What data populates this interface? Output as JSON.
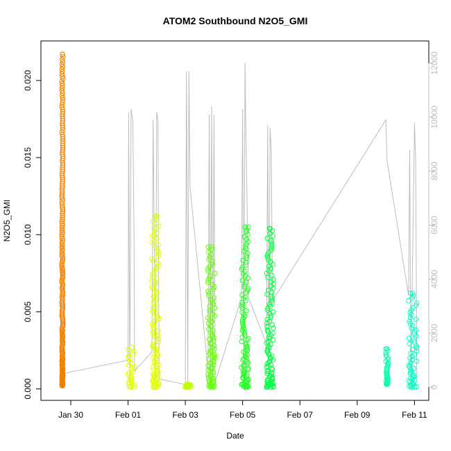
{
  "chart_data": {
    "type": "scatter",
    "title": "ATOM2 Southbound N2O5_GMI",
    "xlabel": "Date",
    "ylabel": "N2O5_GMI",
    "x_ticks": [
      "Jan 30",
      "Feb 01",
      "Feb 03",
      "Feb 05",
      "Feb 07",
      "Feb 09",
      "Feb 11"
    ],
    "xlim": [
      "2017-01-28T23:00",
      "2017-02-11T12:00"
    ],
    "ylim": [
      0,
      0.0217
    ],
    "y_ticks": [
      0.0,
      0.005,
      0.01,
      0.015,
      0.02
    ],
    "y_tick_labels": [
      "0.000",
      "0.005",
      "0.010",
      "0.015",
      "0.020"
    ],
    "y2_ticks": [
      0,
      2000,
      4000,
      6000,
      8000,
      10000,
      12000
    ],
    "y2lim": [
      0,
      12000
    ],
    "grid": false,
    "colors": {
      "day_jan29": "#f08000",
      "day_feb01": "#e0ff00",
      "day_feb02": "#e0ff00",
      "day_feb03": "#c0ff00",
      "day_feb04": "#60ff00",
      "day_feb05": "#20ff20",
      "day_feb06": "#00ff40",
      "day_feb10": "#00ffa8",
      "day_feb11": "#00ffc8",
      "altitude_line": "#bdbdbd"
    },
    "series": [
      {
        "color_key": "day_jan29",
        "x_range": [
          "2017-01-29T16:30",
          "2017-01-29T17:30"
        ],
        "y_max": 0.0217,
        "y_min": 0.0002
      },
      {
        "color_key": "day_feb01",
        "x_range": [
          "2017-02-01T00:00",
          "2017-02-01T06:00"
        ],
        "y_max": 0.0027,
        "y_min": 0.0001
      },
      {
        "color_key": "day_feb02",
        "x_range": [
          "2017-02-01T20:00",
          "2017-02-02T02:00"
        ],
        "y_max": 0.0112,
        "y_min": 0.0001
      },
      {
        "color_key": "day_feb03",
        "x_range": [
          "2017-02-03T00:00",
          "2017-02-03T05:00"
        ],
        "y_max": 0.0003,
        "y_min": 0.0001
      },
      {
        "color_key": "day_feb04",
        "x_range": [
          "2017-02-03T19:00",
          "2017-02-04T01:00"
        ],
        "y_max": 0.0092,
        "y_min": 0.0001
      },
      {
        "color_key": "day_feb05",
        "x_range": [
          "2017-02-04T23:00",
          "2017-02-05T05:00"
        ],
        "y_max": 0.0105,
        "y_min": 0.0001
      },
      {
        "color_key": "day_feb06",
        "x_range": [
          "2017-02-05T20:00",
          "2017-02-06T02:00"
        ],
        "y_max": 0.0104,
        "y_min": 0.0001
      },
      {
        "color_key": "day_feb10",
        "x_range": [
          "2017-02-10T00:00",
          "2017-02-10T02:00"
        ],
        "y_max": 0.0026,
        "y_min": 0.0003
      },
      {
        "color_key": "day_feb11",
        "x_range": [
          "2017-02-10T19:00",
          "2017-02-11T02:00"
        ],
        "y_max": 0.0062,
        "y_min": 0.0001
      }
    ],
    "altitude_profile": {
      "axis": "right",
      "points": [
        [
          "2017-01-29T17:00",
          500
        ],
        [
          "2017-02-01T00:00",
          1000
        ],
        [
          "2017-02-01T00:30",
          10200
        ],
        [
          "2017-02-01T01:30",
          200
        ],
        [
          "2017-02-01T02:30",
          10300
        ],
        [
          "2017-02-01T04:00",
          9900
        ],
        [
          "2017-02-01T05:00",
          5600
        ],
        [
          "2017-02-01T05:30",
          600
        ],
        [
          "2017-02-01T20:00",
          1300
        ],
        [
          "2017-02-01T21:00",
          9900
        ],
        [
          "2017-02-01T23:00",
          200
        ],
        [
          "2017-02-02T00:00",
          10200
        ],
        [
          "2017-02-02T01:00",
          9900
        ],
        [
          "2017-02-02T02:00",
          300
        ],
        [
          "2017-02-03T00:00",
          100
        ],
        [
          "2017-02-03T01:00",
          11700
        ],
        [
          "2017-02-03T02:00",
          200
        ],
        [
          "2017-02-03T03:00",
          11700
        ],
        [
          "2017-02-03T04:00",
          7400
        ],
        [
          "2017-02-03T19:00",
          600
        ],
        [
          "2017-02-03T20:00",
          10100
        ],
        [
          "2017-02-03T21:00",
          200
        ],
        [
          "2017-02-03T22:00",
          10400
        ],
        [
          "2017-02-03T23:00",
          300
        ],
        [
          "2017-02-04T00:00",
          10100
        ],
        [
          "2017-02-04T01:00",
          200
        ],
        [
          "2017-02-04T23:00",
          3300
        ],
        [
          "2017-02-05T00:00",
          10300
        ],
        [
          "2017-02-05T01:00",
          300
        ],
        [
          "2017-02-05T02:00",
          12000
        ],
        [
          "2017-02-05T03:00",
          8800
        ],
        [
          "2017-02-05T05:00",
          3300
        ],
        [
          "2017-02-05T20:00",
          1600
        ],
        [
          "2017-02-05T21:00",
          9700
        ],
        [
          "2017-02-05T22:00",
          300
        ],
        [
          "2017-02-05T23:00",
          9600
        ],
        [
          "2017-02-06T00:00",
          8700
        ],
        [
          "2017-02-06T01:00",
          3200
        ],
        [
          "2017-02-10T00:00",
          9900
        ],
        [
          "2017-02-10T01:00",
          8400
        ],
        [
          "2017-02-10T19:00",
          3400
        ],
        [
          "2017-02-10T20:00",
          8800
        ],
        [
          "2017-02-10T21:00",
          200
        ],
        [
          "2017-02-11T00:00",
          9800
        ],
        [
          "2017-02-11T01:00",
          8400
        ],
        [
          "2017-02-11T02:00",
          300
        ]
      ]
    }
  }
}
